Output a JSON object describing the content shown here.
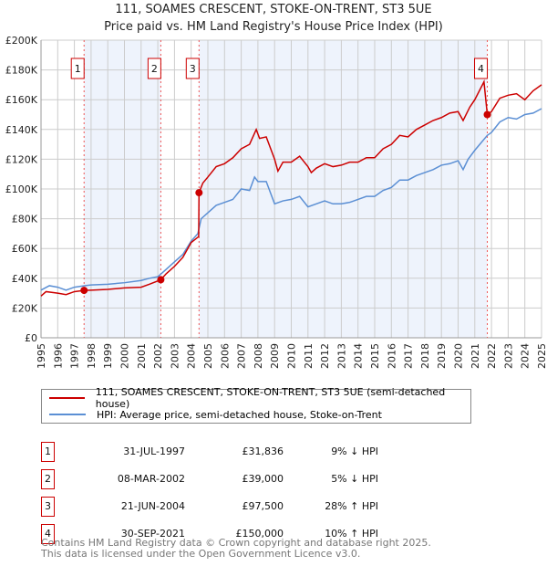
{
  "chart_data": {
    "type": "line",
    "title": "111, SOAMES CRESCENT, STOKE-ON-TRENT, ST3 5UE",
    "subtitle": "Price paid vs. HM Land Registry's House Price Index (HPI)",
    "xlim": [
      1995,
      2025
    ],
    "ylim": [
      0,
      200000
    ],
    "yticks": [
      "£0",
      "£20K",
      "£40K",
      "£60K",
      "£80K",
      "£100K",
      "£120K",
      "£140K",
      "£160K",
      "£180K",
      "£200K"
    ],
    "xticks": [
      "1995",
      "1996",
      "1997",
      "1998",
      "1999",
      "2000",
      "2001",
      "2002",
      "2003",
      "2004",
      "2005",
      "2006",
      "2007",
      "2008",
      "2009",
      "2010",
      "2011",
      "2012",
      "2013",
      "2014",
      "2015",
      "2016",
      "2017",
      "2018",
      "2019",
      "2020",
      "2021",
      "2022",
      "2023",
      "2024",
      "2025"
    ],
    "grid": true,
    "series": [
      {
        "name": "111, SOAMES CRESCENT, STOKE-ON-TRENT, ST3 5UE (semi-detached house)",
        "color": "#cc0000",
        "x": [
          1995,
          1995.3,
          1996,
          1996.5,
          1997,
          1997.58,
          1998,
          1999,
          2000,
          2001,
          2001.5,
          2002.18,
          2002.5,
          2003,
          2003.5,
          2004,
          2004.45,
          2004.47,
          2004.7,
          2005,
          2005.5,
          2006,
          2006.5,
          2007,
          2007.5,
          2007.9,
          2008.1,
          2008.5,
          2009,
          2009.2,
          2009.5,
          2010,
          2010.5,
          2011,
          2011.2,
          2011.5,
          2012,
          2012.5,
          2013,
          2013.5,
          2014,
          2014.5,
          2015,
          2015.5,
          2016,
          2016.5,
          2017,
          2017.5,
          2018,
          2018.5,
          2019,
          2019.5,
          2020,
          2020.3,
          2020.7,
          2021,
          2021.55,
          2021.75,
          2022,
          2022.5,
          2023,
          2023.5,
          2024,
          2024.5,
          2025
        ],
        "y": [
          28,
          31,
          30,
          29,
          31,
          31.8,
          32,
          32.5,
          33.5,
          34,
          36,
          39,
          43,
          48,
          54,
          64,
          68,
          97.5,
          104,
          108,
          115,
          117,
          121,
          127,
          130,
          140,
          134,
          135,
          120,
          112,
          118,
          118,
          122,
          115,
          111,
          114,
          117,
          115,
          116,
          118,
          118,
          121,
          121,
          127,
          130,
          136,
          135,
          140,
          143,
          146,
          148,
          151,
          152,
          146,
          155,
          160,
          172,
          150,
          152,
          161,
          163,
          164,
          160,
          166,
          170
        ]
      },
      {
        "name": "HPI: Average price, semi-detached house, Stoke-on-Trent",
        "color": "#5b8fd4",
        "x": [
          1995,
          1995.5,
          1996,
          1996.5,
          1997,
          1997.6,
          1998,
          1999,
          2000,
          2001,
          2001.5,
          2002,
          2002.5,
          2003,
          2003.5,
          2004,
          2004.4,
          2004.6,
          2005,
          2005.5,
          2006,
          2006.5,
          2007,
          2007.5,
          2007.8,
          2008,
          2008.5,
          2009,
          2009.5,
          2010,
          2010.5,
          2011,
          2011.5,
          2012,
          2012.5,
          2013,
          2013.5,
          2014,
          2014.5,
          2015,
          2015.5,
          2016,
          2016.5,
          2017,
          2017.5,
          2018,
          2018.5,
          2019,
          2019.5,
          2020,
          2020.3,
          2020.6,
          2021,
          2021.75,
          2022,
          2022.5,
          2023,
          2023.5,
          2024,
          2024.5,
          2025
        ],
        "y": [
          32,
          35,
          34,
          32,
          34,
          35,
          35.5,
          36,
          37,
          38.5,
          40,
          41,
          46,
          51,
          56,
          65,
          70,
          80,
          84,
          89,
          91,
          93,
          100,
          99,
          108,
          105,
          105,
          90,
          92,
          93,
          95,
          88,
          90,
          92,
          90,
          90,
          91,
          93,
          95,
          95,
          99,
          101,
          106,
          106,
          109,
          111,
          113,
          116,
          117,
          119,
          113,
          120,
          126,
          136,
          138,
          145,
          148,
          147,
          150,
          151,
          154
        ]
      }
    ],
    "sales": [
      {
        "label": "1",
        "x": 1997.58,
        "y": 31836,
        "date": "31-JUL-1997",
        "price": "£31,836",
        "hpi": "9% ↓ HPI"
      },
      {
        "label": "2",
        "x": 2002.18,
        "y": 39000,
        "date": "08-MAR-2002",
        "price": "£39,000",
        "hpi": "5% ↓ HPI"
      },
      {
        "label": "3",
        "x": 2004.47,
        "y": 97500,
        "date": "21-JUN-2004",
        "price": "£97,500",
        "hpi": "28% ↑ HPI"
      },
      {
        "label": "4",
        "x": 2021.75,
        "y": 150000,
        "date": "30-SEP-2021",
        "price": "£150,000",
        "hpi": "10% ↑ HPI"
      }
    ],
    "legend": [
      "111, SOAMES CRESCENT, STOKE-ON-TRENT, ST3 5UE (semi-detached house)",
      "HPI: Average price, semi-detached house, Stoke-on-Trent"
    ]
  },
  "footer": [
    "Contains HM Land Registry data © Crown copyright and database right 2025.",
    "This data is licensed under the Open Government Licence v3.0."
  ]
}
